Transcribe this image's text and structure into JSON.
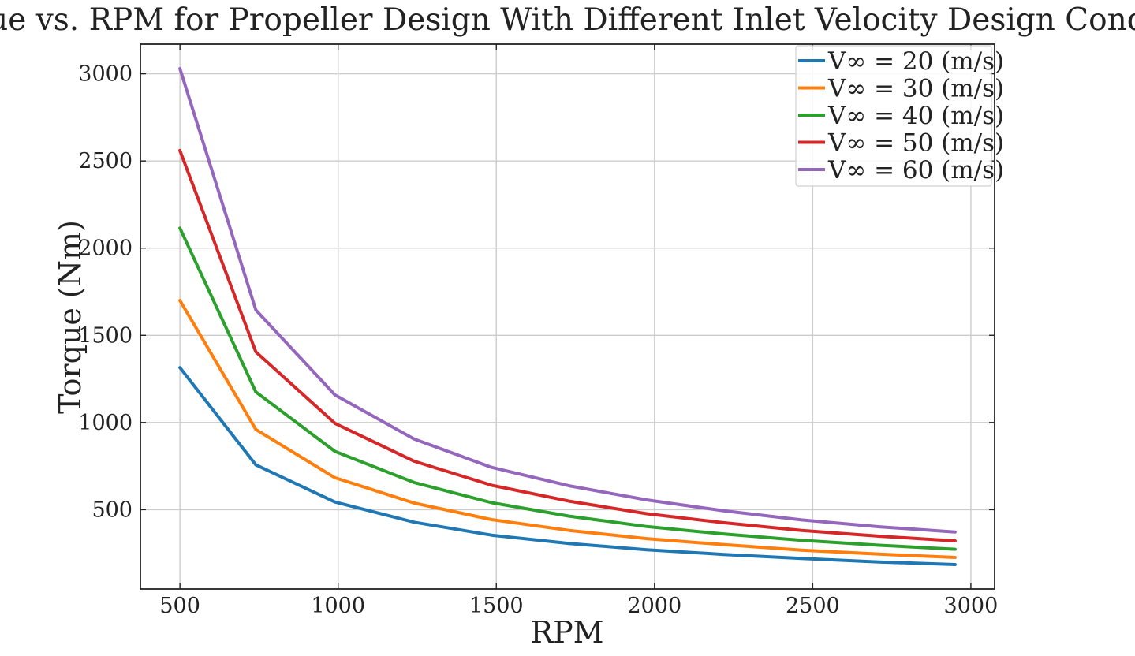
{
  "chart_data": {
    "type": "line",
    "title": "Torque vs. RPM for Propeller Design With Different Inlet Velocity Design Condition",
    "xlabel": "RPM",
    "ylabel": "Torque (Nm)",
    "xlim": [
      375,
      3075
    ],
    "ylim": [
      45,
      3170
    ],
    "xticks": [
      500,
      1000,
      1500,
      2000,
      2500,
      3000
    ],
    "yticks": [
      500,
      1000,
      1500,
      2000,
      2500,
      3000
    ],
    "grid": true,
    "legend_position": "top-right",
    "x": [
      500,
      740,
      990,
      1240,
      1485,
      1730,
      1975,
      2220,
      2465,
      2710,
      2950
    ],
    "series": [
      {
        "name": "V∞ = 20 (m/s)",
        "color": "#1f77b4",
        "values": [
          1315,
          757,
          544,
          428,
          354,
          306,
          270,
          243,
          220,
          200,
          185
        ]
      },
      {
        "name": "V∞ = 30 (m/s)",
        "color": "#ff7f0e",
        "values": [
          1700,
          960,
          683,
          538,
          443,
          381,
          334,
          299,
          268,
          245,
          226
        ]
      },
      {
        "name": "V∞ = 40 (m/s)",
        "color": "#2ca02c",
        "values": [
          2115,
          1175,
          834,
          656,
          540,
          463,
          403,
          360,
          324,
          296,
          273
        ]
      },
      {
        "name": "V∞ = 50 (m/s)",
        "color": "#d62728",
        "values": [
          2560,
          1405,
          995,
          778,
          640,
          549,
          477,
          425,
          381,
          348,
          321
        ]
      },
      {
        "name": "V∞ = 60 (m/s)",
        "color": "#9467bd",
        "values": [
          3030,
          1645,
          1158,
          905,
          743,
          637,
          556,
          493,
          441,
          402,
          372
        ]
      }
    ]
  }
}
